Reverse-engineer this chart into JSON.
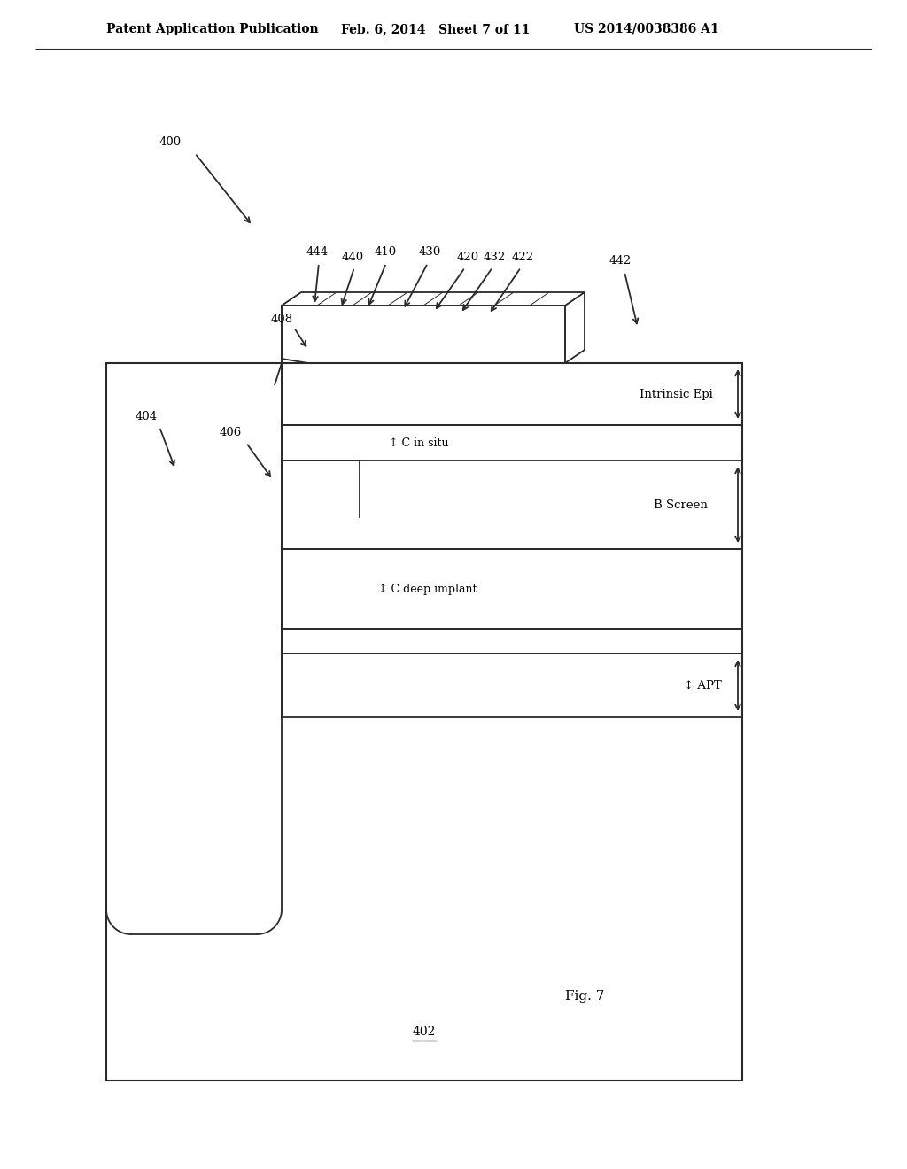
{
  "bg_color": "#ffffff",
  "line_color": "#2a2a2a",
  "header_left": "Patent Application Publication",
  "header_mid": "Feb. 6, 2014   Sheet 7 of 11",
  "header_right": "US 2014/0038386 A1",
  "fig_label": "Fig. 7",
  "ref_400": "400",
  "ref_402": "402",
  "ref_404": "404",
  "ref_406": "406",
  "ref_408": "408",
  "ref_410": "410",
  "ref_420": "420",
  "ref_422": "422",
  "ref_430": "430",
  "ref_432": "432",
  "ref_440": "440",
  "ref_442": "442",
  "ref_444": "444",
  "label_intrinsic_epi": "Intrinsic Epi",
  "label_b_screen": "B Screen",
  "label_c_in_situ": "↕ C in situ",
  "label_c_deep": "↕ C deep implant",
  "label_apt": "↕ APT"
}
